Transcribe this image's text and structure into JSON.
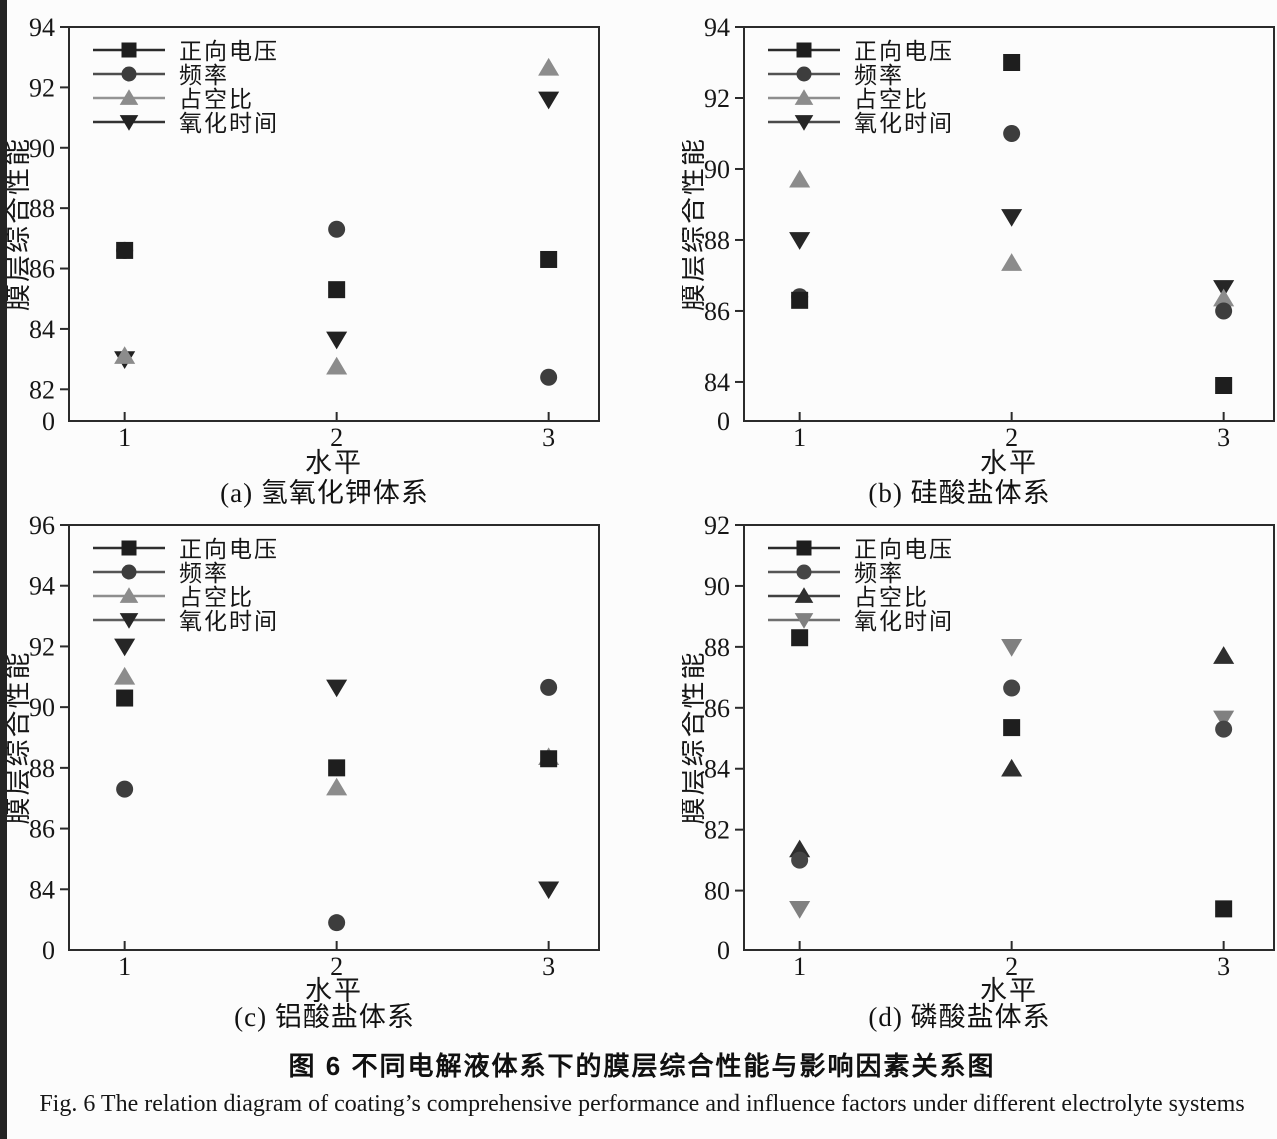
{
  "figure": {
    "title_cn": "图 6  不同电解液体系下的膜层综合性能与影响因素关系图",
    "title_en": "Fig. 6  The relation diagram of coating’s comprehensive performance and influence factors under different electrolyte systems"
  },
  "chart_data": [
    {
      "id": "a",
      "type": "line",
      "caption": "(a) 氢氧化钾体系",
      "xlabel": "水平",
      "ylabel": "膜层综合性能",
      "x": [
        1,
        2,
        3
      ],
      "xticklabels": [
        "1",
        "2",
        "3"
      ],
      "yticks": [
        82,
        84,
        86,
        88,
        90,
        92,
        94
      ],
      "origin_label": "0",
      "gap_units": 1.05,
      "legend_position": "top-left",
      "series": [
        {
          "name": "正向电压",
          "marker": "square",
          "marker_color": "#1e1e1e",
          "line_color": "#2b2b2b",
          "values": [
            86.6,
            85.3,
            86.3
          ]
        },
        {
          "name": "频率",
          "marker": "circle",
          "marker_color": "#3d3d3d",
          "line_color": "#4d4d4d",
          "values": [
            86.6,
            87.3,
            82.4
          ]
        },
        {
          "name": "占空比",
          "marker": "triangle-up",
          "marker_color": "#8c8c8c",
          "line_color": "#949494",
          "values": [
            83.1,
            82.75,
            92.65
          ]
        },
        {
          "name": "氧化时间",
          "marker": "triangle-down",
          "marker_color": "#222222",
          "line_color": "#333333",
          "values": [
            83.0,
            83.65,
            91.6
          ]
        }
      ]
    },
    {
      "id": "b",
      "type": "line",
      "caption": "(b) 硅酸盐体系",
      "xlabel": "水平",
      "ylabel": "膜层综合性能",
      "x": [
        1,
        2,
        3
      ],
      "xticklabels": [
        "1",
        "2",
        "3"
      ],
      "yticks": [
        84,
        86,
        88,
        90,
        92,
        94
      ],
      "origin_label": "0",
      "gap_units": 1.1,
      "legend_position": "top-left",
      "series": [
        {
          "name": "正向电压",
          "marker": "square",
          "marker_color": "#1e1e1e",
          "line_color": "#2b2b2b",
          "values": [
            86.3,
            93.0,
            83.9
          ]
        },
        {
          "name": "频率",
          "marker": "circle",
          "marker_color": "#3d3d3d",
          "line_color": "#525252",
          "values": [
            86.4,
            91.0,
            86.0
          ]
        },
        {
          "name": "占空比",
          "marker": "triangle-up",
          "marker_color": "#8c8c8c",
          "line_color": "#8e8e8e",
          "values": [
            89.7,
            87.35,
            86.35
          ]
        },
        {
          "name": "氧化时间",
          "marker": "triangle-down",
          "marker_color": "#262626",
          "line_color": "#4a4a4a",
          "values": [
            88.0,
            88.65,
            86.65
          ]
        }
      ]
    },
    {
      "id": "c",
      "type": "line",
      "caption": "(c) 铝酸盐体系",
      "xlabel": "水平",
      "ylabel": "膜层综合性能",
      "x": [
        1,
        2,
        3
      ],
      "xticklabels": [
        "1",
        "2",
        "3"
      ],
      "yticks": [
        84,
        86,
        88,
        90,
        92,
        94,
        96
      ],
      "origin_label": "0",
      "gap_units": 2.0,
      "legend_position": "top-left",
      "series": [
        {
          "name": "正向电压",
          "marker": "square",
          "marker_color": "#1e1e1e",
          "line_color": "#2f2f2f",
          "values": [
            90.3,
            88.0,
            88.3
          ]
        },
        {
          "name": "频率",
          "marker": "circle",
          "marker_color": "#3d3d3d",
          "line_color": "#555555",
          "values": [
            87.3,
            82.9,
            90.65
          ]
        },
        {
          "name": "占空比",
          "marker": "triangle-up",
          "marker_color": "#8c8c8c",
          "line_color": "#8e8e8e",
          "values": [
            91.0,
            87.35,
            88.35
          ]
        },
        {
          "name": "氧化时间",
          "marker": "triangle-down",
          "marker_color": "#262626",
          "line_color": "#5e5e5e",
          "values": [
            92.0,
            90.65,
            84.0
          ]
        }
      ]
    },
    {
      "id": "d",
      "type": "line",
      "caption": "(d) 磷酸盐体系",
      "xlabel": "水平",
      "ylabel": "膜层综合性能",
      "x": [
        1,
        2,
        3
      ],
      "xticklabels": [
        "1",
        "2",
        "3"
      ],
      "yticks": [
        80,
        82,
        84,
        86,
        88,
        90,
        92
      ],
      "origin_label": "0",
      "gap_units": 1.95,
      "legend_position": "top-left",
      "series": [
        {
          "name": "正向电压",
          "marker": "square",
          "marker_color": "#1e1e1e",
          "line_color": "#2b2b2b",
          "values": [
            88.3,
            85.35,
            79.4
          ]
        },
        {
          "name": "频率",
          "marker": "circle",
          "marker_color": "#454545",
          "line_color": "#565656",
          "values": [
            81.0,
            86.65,
            85.3
          ]
        },
        {
          "name": "占空比",
          "marker": "triangle-up",
          "marker_color": "#2e2e2e",
          "line_color": "#414141",
          "values": [
            81.35,
            84.0,
            87.7
          ]
        },
        {
          "name": "氧化时间",
          "marker": "triangle-down",
          "marker_color": "#808080",
          "line_color": "#6f6f6f",
          "values": [
            79.4,
            88.0,
            85.65
          ]
        }
      ]
    }
  ]
}
